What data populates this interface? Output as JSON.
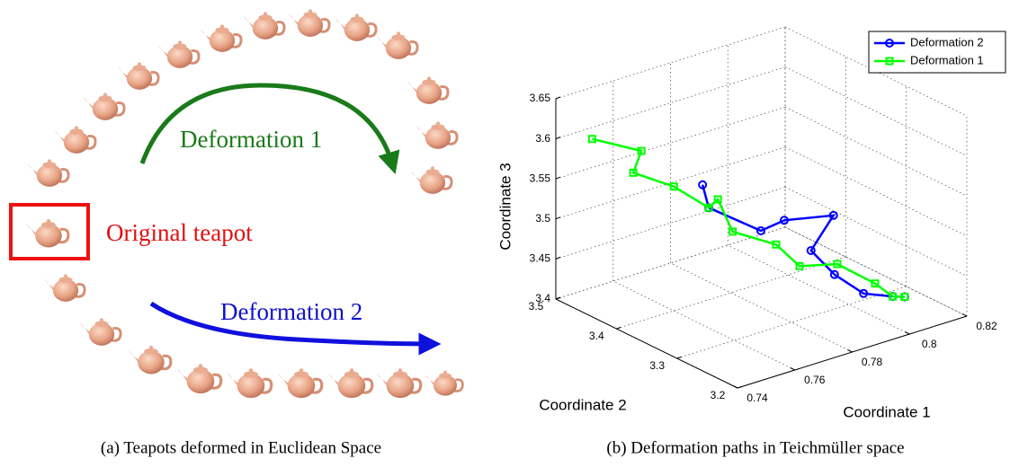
{
  "figure": {
    "left": {
      "deformation1": "Deformation 1",
      "original": "Original teapot",
      "deformation2": "Deformation 2",
      "caption": "(a) Teapots deformed in Euclidean Space"
    },
    "right": {
      "caption": "(b) Deformation paths in Teichmüller space"
    }
  },
  "chart_data": {
    "type": "line3d",
    "xlabel": "Coordinate 1",
    "ylabel": "Coordinate 2",
    "zlabel": "Coordinate 3",
    "xlim": [
      0.74,
      0.82
    ],
    "ylim": [
      3.2,
      3.5
    ],
    "zlim": [
      3.4,
      3.65
    ],
    "xticks": [
      0.74,
      0.76,
      0.78,
      0.8,
      0.82
    ],
    "yticks": [
      3.2,
      3.3,
      3.4,
      3.5
    ],
    "zticks": [
      3.4,
      3.45,
      3.5,
      3.55,
      3.6,
      3.65
    ],
    "grid": true,
    "legend": "upper right",
    "series": [
      {
        "name": "Deformation 2",
        "color": "#0000ff",
        "marker": "circle",
        "x": [
          0.769,
          0.768,
          0.783,
          0.788,
          0.802,
          0.791,
          0.796,
          0.803,
          0.81,
          0.811
        ],
        "y": [
          3.395,
          3.38,
          3.365,
          3.35,
          3.335,
          3.32,
          3.305,
          3.29,
          3.275,
          3.26
        ],
        "z": [
          3.549,
          3.527,
          3.487,
          3.5,
          3.496,
          3.47,
          3.44,
          3.414,
          3.408,
          3.412
        ]
      },
      {
        "name": "Deformation 1",
        "color": "#00ff00",
        "marker": "square",
        "x": [
          0.74,
          0.754,
          0.748,
          0.759,
          0.768,
          0.768,
          0.77,
          0.782,
          0.787,
          0.797,
          0.807,
          0.81,
          0.811
        ],
        "y": [
          3.44,
          3.425,
          3.41,
          3.395,
          3.38,
          3.365,
          3.35,
          3.335,
          3.32,
          3.305,
          3.29,
          3.275,
          3.26
        ],
        "z": [
          3.622,
          3.597,
          3.582,
          3.558,
          3.527,
          3.543,
          3.506,
          3.482,
          3.455,
          3.452,
          3.422,
          3.408,
          3.412
        ]
      }
    ]
  }
}
